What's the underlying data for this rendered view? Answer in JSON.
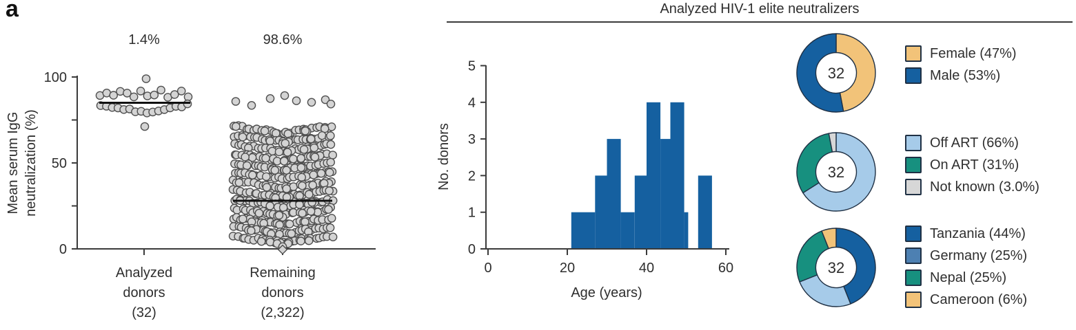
{
  "panel_label": "a",
  "header": {
    "title": "Analyzed HIV-1 elite neutralizers"
  },
  "colors": {
    "dark_blue": "#1560a0",
    "light_blue": "#a6cbe9",
    "steel_blue": "#4d80b2",
    "teal": "#17907f",
    "yellow": "#f2c379",
    "gray": "#d7d7d7",
    "point_fill": "#d4d4d4",
    "point_stroke": "#4f4f4f",
    "axis": "#3a3a3a",
    "mean_line": "#111111",
    "slice_stroke": "#1f3044"
  },
  "chart_data": [
    {
      "id": "neutralization_beeswarm",
      "type": "beeswarm",
      "ylabel_lines": [
        "Mean serum IgG",
        "neutralization (%)"
      ],
      "ylim": [
        0,
        100
      ],
      "yticks": [
        0,
        50,
        100
      ],
      "yminor_ticks": [
        25,
        75
      ],
      "groups": [
        {
          "label_lines": [
            "Analyzed",
            "donors",
            "(32)"
          ],
          "n": 32,
          "share_label": "1.4%",
          "mean": 85,
          "points_range": [
            70,
            100
          ]
        },
        {
          "label_lines": [
            "Remaining",
            "donors",
            "(2,322)"
          ],
          "n": 2322,
          "share_label": "98.6%",
          "mean": 28,
          "points_range": [
            0,
            92
          ]
        }
      ]
    },
    {
      "id": "age_histogram",
      "type": "bar",
      "xlabel": "Age (years)",
      "ylabel": "No. donors",
      "xlim": [
        0,
        60
      ],
      "ylim": [
        0,
        5
      ],
      "xticks": [
        0,
        20,
        40,
        60
      ],
      "yticks": [
        0,
        1,
        2,
        3,
        4,
        5
      ],
      "bar_color": "#1560a0",
      "bars": [
        {
          "from": 21,
          "to": 27,
          "count": 1
        },
        {
          "from": 27,
          "to": 30,
          "count": 2
        },
        {
          "from": 30,
          "to": 33.5,
          "count": 3
        },
        {
          "from": 33.5,
          "to": 37,
          "count": 1
        },
        {
          "from": 37,
          "to": 40,
          "count": 2
        },
        {
          "from": 40,
          "to": 43.5,
          "count": 4
        },
        {
          "from": 43.5,
          "to": 46,
          "count": 3
        },
        {
          "from": 46,
          "to": 49.5,
          "count": 4
        },
        {
          "from": 49.5,
          "to": 50.5,
          "count": 1
        },
        {
          "from": 53,
          "to": 56.5,
          "count": 2
        }
      ]
    },
    {
      "id": "sex_donut",
      "type": "pie",
      "total": 32,
      "slices": [
        {
          "label": "Female (47%)",
          "value": 47,
          "color": "#f2c379"
        },
        {
          "label": "Male (53%)",
          "value": 53,
          "color": "#1560a0"
        }
      ]
    },
    {
      "id": "art_status_donut",
      "type": "pie",
      "total": 32,
      "slices": [
        {
          "label": "Off ART (66%)",
          "value": 66,
          "color": "#a6cbe9"
        },
        {
          "label": "On ART (31%)",
          "value": 31,
          "color": "#17907f"
        },
        {
          "label": "Not known (3.0%)",
          "value": 3,
          "color": "#d7d7d7"
        }
      ]
    },
    {
      "id": "country_donut",
      "type": "pie",
      "total": 32,
      "slices": [
        {
          "label": "Tanzania (44%)",
          "value": 44,
          "color": "#1560a0"
        },
        {
          "label": "Germany (25%)",
          "value": 25,
          "color": "#a6cbe9",
          "swatch_color": "#4d80b2"
        },
        {
          "label": "Nepal (25%)",
          "value": 25,
          "color": "#17907f"
        },
        {
          "label": "Cameroon (6%)",
          "value": 6,
          "color": "#f2c379"
        }
      ]
    }
  ]
}
